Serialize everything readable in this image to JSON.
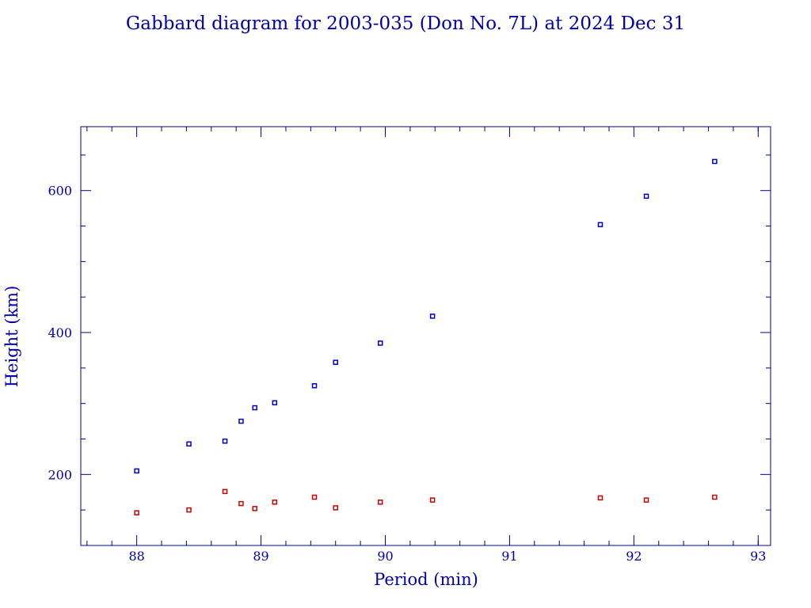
{
  "colors": {
    "axis": "#00008B",
    "text": "#0000AA",
    "apogee": "#0000CC",
    "perigee": "#CC0000"
  },
  "chart_data": {
    "type": "scatter",
    "title": "Gabbard diagram for 2003-035 (Don No. 7L) at 2024 Dec 31",
    "xlabel": "Period (min)",
    "ylabel": "Height (km)",
    "xlim": [
      87.55,
      93.1
    ],
    "ylim": [
      100,
      690
    ],
    "grid": false,
    "x_major_ticks": [
      88,
      89,
      90,
      91,
      92,
      93
    ],
    "x_minor_ticks": [
      87.6,
      87.8,
      88.2,
      88.4,
      88.6,
      88.8,
      89.2,
      89.4,
      89.6,
      89.8,
      90.2,
      90.4,
      90.6,
      90.8,
      91.2,
      91.4,
      91.6,
      91.8,
      92.2,
      92.4,
      92.6,
      92.8,
      93.0
    ],
    "y_major_ticks": [
      200,
      400,
      600
    ],
    "y_minor_ticks": [
      100,
      150,
      250,
      300,
      350,
      450,
      500,
      550,
      650
    ],
    "series": [
      {
        "color_key": "apogee",
        "points": [
          [
            88.0,
            205
          ],
          [
            88.42,
            243
          ],
          [
            88.71,
            247
          ],
          [
            88.84,
            275
          ],
          [
            88.95,
            294
          ],
          [
            89.11,
            301
          ],
          [
            89.43,
            325
          ],
          [
            89.6,
            358
          ],
          [
            89.96,
            385
          ],
          [
            90.38,
            423
          ],
          [
            91.73,
            552
          ],
          [
            92.1,
            592
          ],
          [
            92.65,
            641
          ]
        ]
      },
      {
        "color_key": "perigee",
        "points": [
          [
            88.0,
            146
          ],
          [
            88.42,
            150
          ],
          [
            88.71,
            176
          ],
          [
            88.84,
            159
          ],
          [
            88.95,
            152
          ],
          [
            89.11,
            161
          ],
          [
            89.43,
            168
          ],
          [
            89.6,
            153
          ],
          [
            89.96,
            161
          ],
          [
            90.38,
            164
          ],
          [
            91.73,
            167
          ],
          [
            92.1,
            164
          ],
          [
            92.65,
            168
          ]
        ]
      }
    ]
  }
}
